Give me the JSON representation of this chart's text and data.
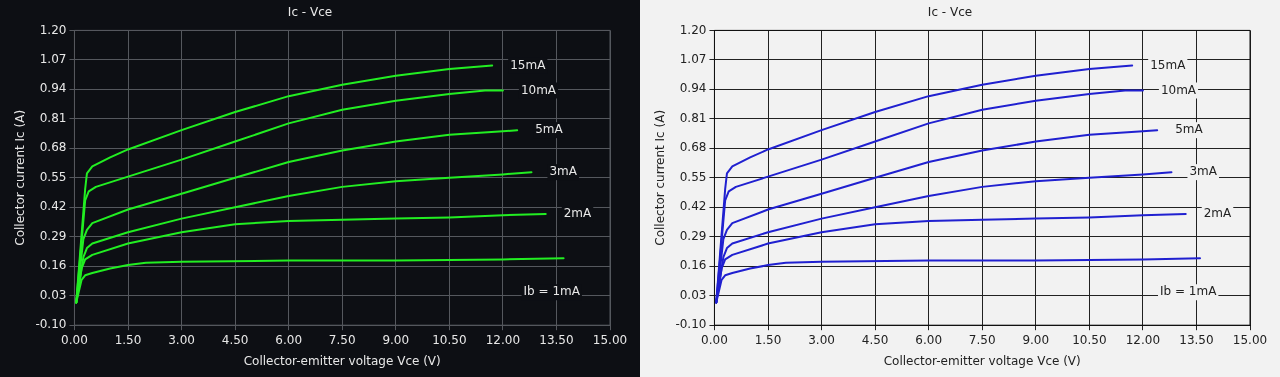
{
  "chart_data": [
    {
      "type": "line",
      "title": "Ic - Vce",
      "xlabel": "Collector-emitter voltage Vce (V)",
      "ylabel": "Collector current Ic (A)",
      "xlim": [
        0,
        15
      ],
      "ylim": [
        -0.1,
        1.2
      ],
      "xticks": [
        {
          "value": 0,
          "label": "0.00"
        },
        {
          "value": 1.5,
          "label": "1.50"
        },
        {
          "value": 3,
          "label": "3.00"
        },
        {
          "value": 4.5,
          "label": "4.50"
        },
        {
          "value": 6,
          "label": "6.00"
        },
        {
          "value": 7.5,
          "label": "7.50"
        },
        {
          "value": 9,
          "label": "9.00"
        },
        {
          "value": 10.5,
          "label": "10.50"
        },
        {
          "value": 12,
          "label": "12.00"
        },
        {
          "value": 13.5,
          "label": "13.50"
        },
        {
          "value": 15,
          "label": "15.00"
        }
      ],
      "yticks": [
        {
          "value": -0.1,
          "label": "-0.10"
        },
        {
          "value": 0.03,
          "label": "0.03"
        },
        {
          "value": 0.16,
          "label": "0.16"
        },
        {
          "value": 0.29,
          "label": "0.29"
        },
        {
          "value": 0.42,
          "label": "0.42"
        },
        {
          "value": 0.55,
          "label": "0.55"
        },
        {
          "value": 0.68,
          "label": "0.68"
        },
        {
          "value": 0.81,
          "label": "0.81"
        },
        {
          "value": 0.94,
          "label": "0.94"
        },
        {
          "value": 1.07,
          "label": "1.07"
        },
        {
          "value": 1.2,
          "label": "1.20"
        }
      ],
      "grid": true,
      "marker": "none",
      "line_style": "solid",
      "series": [
        {
          "name": "Ib = 1mA",
          "color": "#22ee22",
          "x": [
            0.05,
            0.2,
            0.3,
            0.5,
            1.0,
            1.5,
            2.0,
            3,
            6,
            9,
            12,
            13.7
          ],
          "values": [
            0.0,
            0.1,
            0.12,
            0.13,
            0.15,
            0.165,
            0.175,
            0.18,
            0.185,
            0.185,
            0.19,
            0.195
          ]
        },
        {
          "name": "2mA",
          "color": "#22ee22",
          "x": [
            0.05,
            0.2,
            0.3,
            0.5,
            1.5,
            3,
            4.5,
            6,
            7.5,
            9,
            10.5,
            12,
            13.2
          ],
          "values": [
            0.0,
            0.15,
            0.19,
            0.21,
            0.26,
            0.31,
            0.345,
            0.36,
            0.365,
            0.37,
            0.375,
            0.385,
            0.39
          ]
        },
        {
          "name": "3mA",
          "color": "#22ee22",
          "x": [
            0.05,
            0.25,
            0.35,
            0.5,
            1.5,
            3,
            4.5,
            6,
            7.5,
            9,
            10.5,
            12,
            12.8
          ],
          "values": [
            0.0,
            0.2,
            0.24,
            0.26,
            0.31,
            0.37,
            0.42,
            0.47,
            0.51,
            0.535,
            0.55,
            0.565,
            0.575
          ]
        },
        {
          "name": "5mA",
          "color": "#22ee22",
          "x": [
            0.05,
            0.25,
            0.35,
            0.5,
            1.5,
            3,
            4.5,
            6,
            7.5,
            9,
            10.5,
            12,
            12.4
          ],
          "values": [
            0.0,
            0.28,
            0.32,
            0.35,
            0.41,
            0.48,
            0.55,
            0.62,
            0.67,
            0.71,
            0.74,
            0.755,
            0.76
          ]
        },
        {
          "name": "10mA",
          "color": "#22ee22",
          "x": [
            0.05,
            0.3,
            0.4,
            0.6,
            1.5,
            3,
            4.5,
            6,
            7.5,
            9,
            10.5,
            11.5,
            12
          ],
          "values": [
            0.0,
            0.45,
            0.49,
            0.51,
            0.555,
            0.63,
            0.71,
            0.79,
            0.85,
            0.89,
            0.92,
            0.935,
            0.935
          ]
        },
        {
          "name": "15mA",
          "color": "#22ee22",
          "x": [
            0.05,
            0.3,
            0.35,
            0.5,
            1.0,
            1.5,
            3,
            4.5,
            6,
            7.5,
            9,
            10.5,
            11.7
          ],
          "values": [
            0.0,
            0.5,
            0.57,
            0.6,
            0.64,
            0.675,
            0.76,
            0.84,
            0.91,
            0.96,
            1.0,
            1.03,
            1.045
          ]
        }
      ]
    },
    {
      "type": "line",
      "title": "Ic - Vce",
      "xlabel": "Collector-emitter voltage Vce (V)",
      "ylabel": "Collector current Ic (A)",
      "xlim": [
        0,
        15
      ],
      "ylim": [
        -0.1,
        1.2
      ],
      "xticks": [
        {
          "value": 0,
          "label": "0.00"
        },
        {
          "value": 1.5,
          "label": "1.50"
        },
        {
          "value": 3,
          "label": "3.00"
        },
        {
          "value": 4.5,
          "label": "4.50"
        },
        {
          "value": 6,
          "label": "6.00"
        },
        {
          "value": 7.5,
          "label": "7.50"
        },
        {
          "value": 9,
          "label": "9.00"
        },
        {
          "value": 10.5,
          "label": "10.50"
        },
        {
          "value": 12,
          "label": "12.00"
        },
        {
          "value": 13.5,
          "label": "13.50"
        },
        {
          "value": 15,
          "label": "15.00"
        }
      ],
      "yticks": [
        {
          "value": -0.1,
          "label": "-0.10"
        },
        {
          "value": 0.03,
          "label": "0.03"
        },
        {
          "value": 0.16,
          "label": "0.16"
        },
        {
          "value": 0.29,
          "label": "0.29"
        },
        {
          "value": 0.42,
          "label": "0.42"
        },
        {
          "value": 0.55,
          "label": "0.55"
        },
        {
          "value": 0.68,
          "label": "0.68"
        },
        {
          "value": 0.81,
          "label": "0.81"
        },
        {
          "value": 0.94,
          "label": "0.94"
        },
        {
          "value": 1.07,
          "label": "1.07"
        },
        {
          "value": 1.2,
          "label": "1.20"
        }
      ],
      "grid": true,
      "marker": "none",
      "line_style": "solid",
      "series": [
        {
          "name": "Ib = 1mA",
          "color": "#2020d0",
          "x": [
            0.05,
            0.2,
            0.3,
            0.5,
            1.0,
            1.5,
            2.0,
            3,
            6,
            9,
            12,
            13.6
          ],
          "values": [
            0.0,
            0.1,
            0.12,
            0.13,
            0.15,
            0.165,
            0.175,
            0.18,
            0.185,
            0.185,
            0.19,
            0.195
          ]
        },
        {
          "name": "2mA",
          "color": "#2020d0",
          "x": [
            0.05,
            0.2,
            0.3,
            0.5,
            1.5,
            3,
            4.5,
            6,
            7.5,
            9,
            10.5,
            12,
            13.2
          ],
          "values": [
            0.0,
            0.15,
            0.19,
            0.21,
            0.26,
            0.31,
            0.345,
            0.36,
            0.365,
            0.37,
            0.375,
            0.385,
            0.39
          ]
        },
        {
          "name": "3mA",
          "color": "#2020d0",
          "x": [
            0.05,
            0.25,
            0.35,
            0.5,
            1.5,
            3,
            4.5,
            6,
            7.5,
            9,
            10.5,
            12,
            12.8
          ],
          "values": [
            0.0,
            0.2,
            0.24,
            0.26,
            0.31,
            0.37,
            0.42,
            0.47,
            0.51,
            0.535,
            0.55,
            0.565,
            0.575
          ]
        },
        {
          "name": "5mA",
          "color": "#2020d0",
          "x": [
            0.05,
            0.25,
            0.35,
            0.5,
            1.5,
            3,
            4.5,
            6,
            7.5,
            9,
            10.5,
            12,
            12.4
          ],
          "values": [
            0.0,
            0.28,
            0.32,
            0.35,
            0.41,
            0.48,
            0.55,
            0.62,
            0.67,
            0.71,
            0.74,
            0.755,
            0.76
          ]
        },
        {
          "name": "10mA",
          "color": "#2020d0",
          "x": [
            0.05,
            0.3,
            0.4,
            0.6,
            1.5,
            3,
            4.5,
            6,
            7.5,
            9,
            10.5,
            11.5,
            12
          ],
          "values": [
            0.0,
            0.45,
            0.49,
            0.51,
            0.555,
            0.63,
            0.71,
            0.79,
            0.85,
            0.89,
            0.92,
            0.935,
            0.935
          ]
        },
        {
          "name": "15mA",
          "color": "#2020d0",
          "x": [
            0.05,
            0.3,
            0.35,
            0.5,
            1.0,
            1.5,
            3,
            4.5,
            6,
            7.5,
            9,
            10.5,
            11.7
          ],
          "values": [
            0.0,
            0.5,
            0.57,
            0.6,
            0.64,
            0.675,
            0.76,
            0.84,
            0.91,
            0.96,
            1.0,
            1.03,
            1.045
          ]
        }
      ]
    }
  ]
}
